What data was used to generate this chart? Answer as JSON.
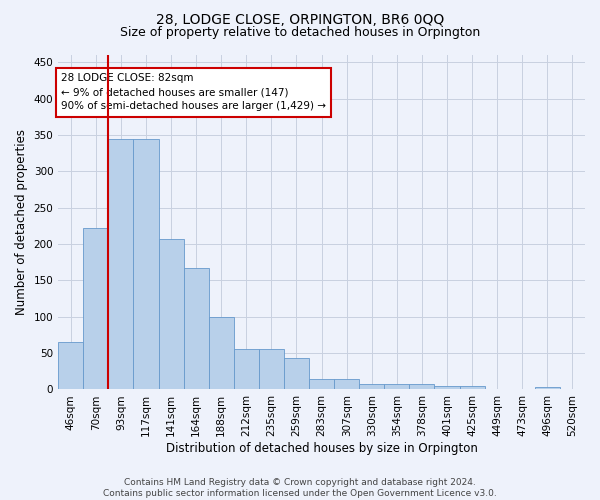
{
  "title": "28, LODGE CLOSE, ORPINGTON, BR6 0QQ",
  "subtitle": "Size of property relative to detached houses in Orpington",
  "xlabel": "Distribution of detached houses by size in Orpington",
  "ylabel": "Number of detached properties",
  "bar_values": [
    65,
    222,
    344,
    344,
    207,
    167,
    99,
    56,
    56,
    43,
    14,
    14,
    8,
    7,
    7,
    5,
    5,
    0,
    0,
    4,
    0
  ],
  "bin_labels": [
    "46sqm",
    "70sqm",
    "93sqm",
    "117sqm",
    "141sqm",
    "164sqm",
    "188sqm",
    "212sqm",
    "235sqm",
    "259sqm",
    "283sqm",
    "307sqm",
    "330sqm",
    "354sqm",
    "378sqm",
    "401sqm",
    "425sqm",
    "449sqm",
    "473sqm",
    "496sqm",
    "520sqm"
  ],
  "bar_color": "#b8d0ea",
  "bar_edge_color": "#6699cc",
  "property_line_x": 1.5,
  "annotation_label": "28 LODGE CLOSE: 82sqm",
  "annotation_line1": "← 9% of detached houses are smaller (147)",
  "annotation_line2": "90% of semi-detached houses are larger (1,429) →",
  "annotation_box_facecolor": "#ffffff",
  "annotation_box_edgecolor": "#cc0000",
  "vline_color": "#cc0000",
  "ylim": [
    0,
    460
  ],
  "yticks": [
    0,
    50,
    100,
    150,
    200,
    250,
    300,
    350,
    400,
    450
  ],
  "grid_color": "#c8d0e0",
  "bg_color": "#eef2fb",
  "footer_line1": "Contains HM Land Registry data © Crown copyright and database right 2024.",
  "footer_line2": "Contains public sector information licensed under the Open Government Licence v3.0.",
  "title_fontsize": 10,
  "subtitle_fontsize": 9,
  "axis_label_fontsize": 8.5,
  "tick_fontsize": 7.5,
  "footer_fontsize": 6.5,
  "annot_fontsize": 7.5
}
